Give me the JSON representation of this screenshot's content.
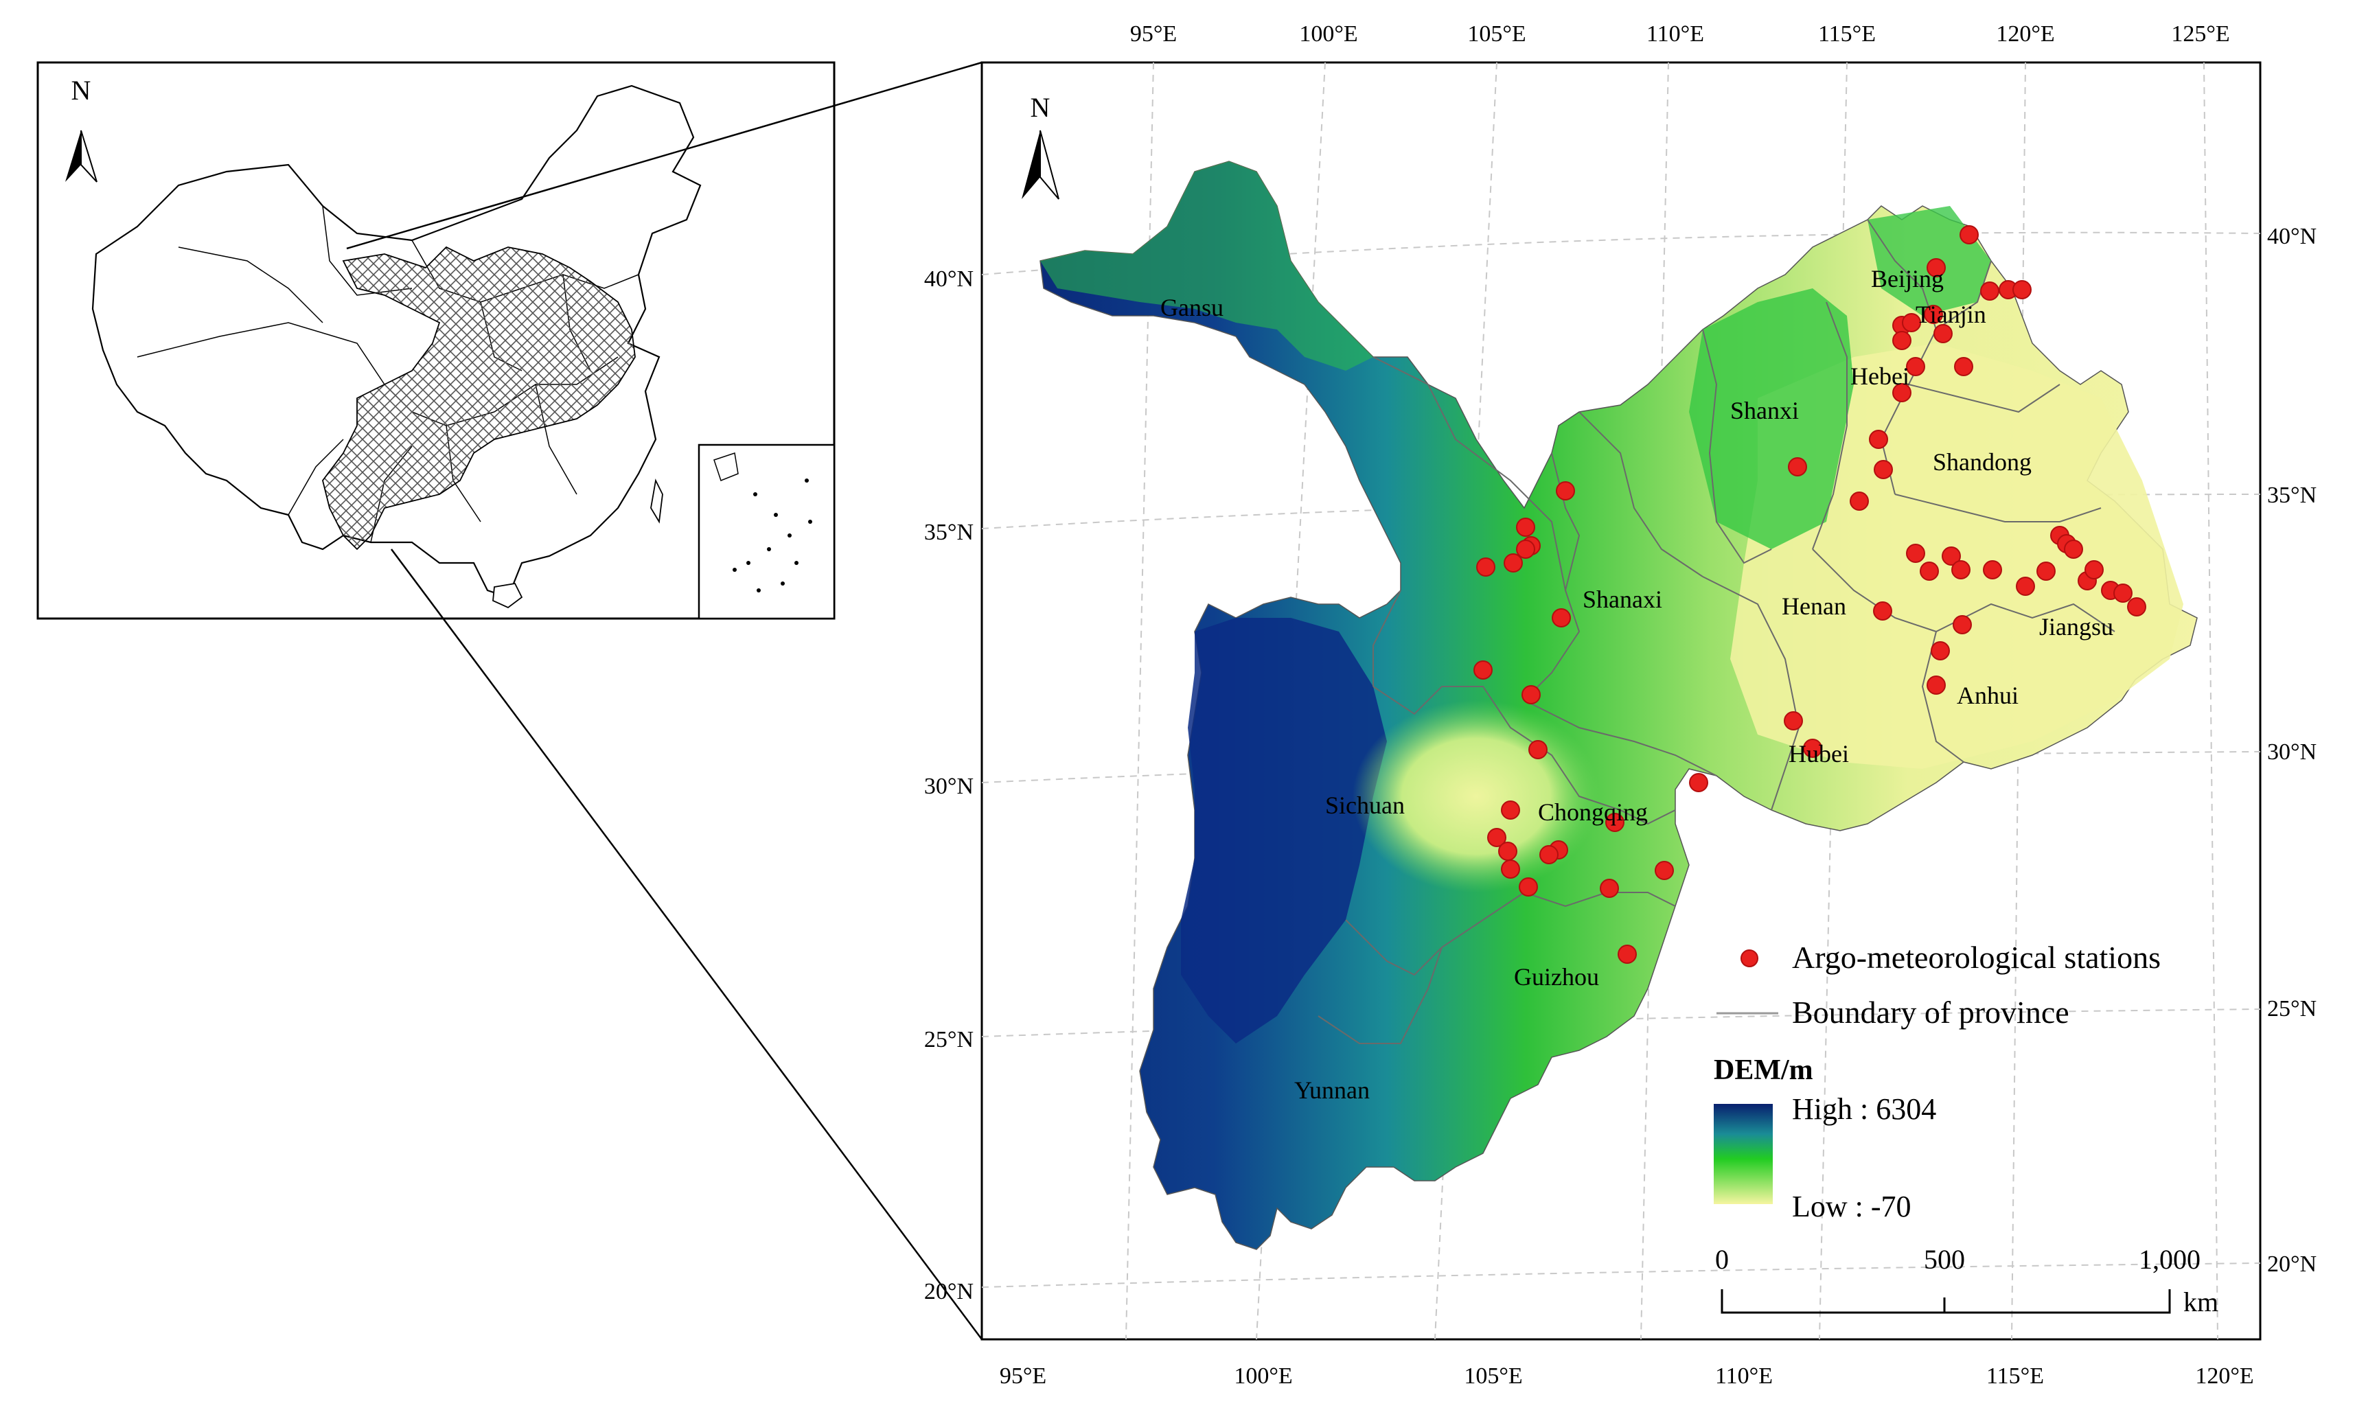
{
  "colors": {
    "station": "#e8201e",
    "station_stroke": "#b30f0f",
    "frame": "#000000",
    "grid": "#c8c8c8",
    "boundary": "#707070",
    "dem_high": "#08206e",
    "dem_mid_high": "#1a8c96",
    "dem_mid": "#22cc22",
    "dem_low": "#f5f5a0"
  },
  "north_label": "N",
  "inset_north_label": "N",
  "axes": {
    "top_lon_labels": [
      "95°E",
      "100°E",
      "105°E",
      "110°E",
      "115°E",
      "120°E",
      "125°E"
    ],
    "bottom_lon_labels": [
      "95°E",
      "100°E",
      "105°E",
      "110°E",
      "115°E",
      "120°E"
    ],
    "left_lat_labels": [
      "40°N",
      "35°N",
      "30°N",
      "25°N",
      "20°N"
    ],
    "right_lat_labels": [
      "40°N",
      "35°N",
      "30°N",
      "25°N",
      "20°N"
    ]
  },
  "provinces": {
    "gansu": "Gansu",
    "beijing": "Beijing",
    "tianjin": "Tianjin",
    "hebei": "Hebei",
    "shanxi": "Shanxi",
    "shandong": "Shandong",
    "shanaxi": "Shanaxi",
    "henan": "Henan",
    "jiangsu": "Jiangsu",
    "anhui": "Anhui",
    "sichuan": "Sichuan",
    "chongqing": "Chongqing",
    "hubei": "Hubei",
    "guizhou": "Guizhou",
    "yunnan": "Yunnan"
  },
  "legend": {
    "stations_label": "Argo-meteorological stations",
    "boundary_label": "Boundary of province",
    "dem_title": "DEM/m",
    "dem_high": "High : 6304",
    "dem_low": "Low : -70"
  },
  "scale_bar": {
    "labels": [
      "0",
      "500",
      "1,000"
    ],
    "unit": "km"
  }
}
